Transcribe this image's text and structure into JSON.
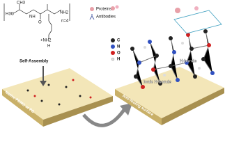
{
  "structure": {
    "labels": [
      "H3C",
      "CH3",
      "NH",
      "O",
      "NH2",
      "n=4",
      "+NH2",
      "H"
    ]
  },
  "legend": {
    "proteins": "Proteins",
    "antibodies": "Antibodies"
  },
  "atoms": [
    "C",
    "N",
    "O",
    "H"
  ],
  "left_panel": {
    "arrow_label": "Self-Assembly",
    "surface_label": "Native PDMS or PS"
  },
  "right_panel": {
    "labels": [
      "H-bonds",
      "Ionic H-bonds"
    ],
    "surface_label": "Anti-fouling surface"
  }
}
